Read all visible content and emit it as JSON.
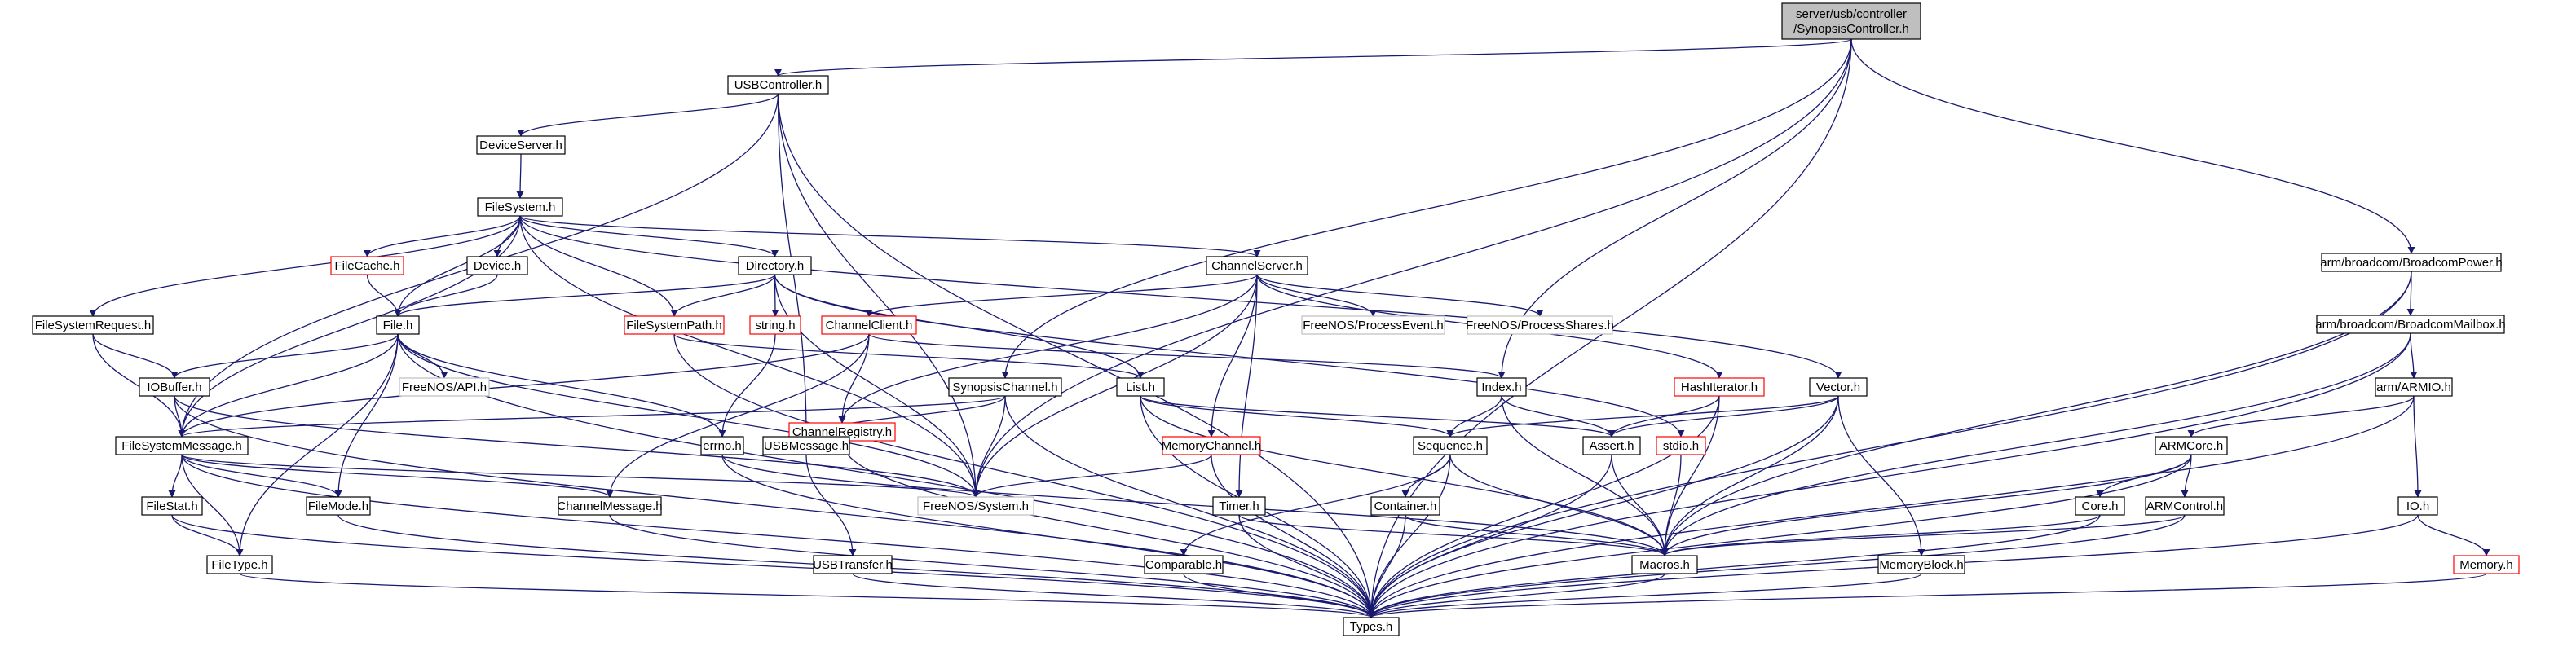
{
  "colors": {
    "edge": "#191970",
    "border_normal": "#000000",
    "border_truncated": "#ff0000",
    "border_external": "#bfbfbf",
    "root_fill": "#bfbfbf",
    "node_fill": "#ffffff"
  },
  "nodes": [
    {
      "id": "root",
      "label": "server/usb/controller\n/SynopsisController.h",
      "kind": "root"
    },
    {
      "id": "usbcontroller",
      "label": "USBController.h",
      "kind": "normal"
    },
    {
      "id": "deviceserver",
      "label": "DeviceServer.h",
      "kind": "normal"
    },
    {
      "id": "filesystem",
      "label": "FileSystem.h",
      "kind": "normal"
    },
    {
      "id": "filecache",
      "label": "FileCache.h",
      "kind": "truncated"
    },
    {
      "id": "device",
      "label": "Device.h",
      "kind": "normal"
    },
    {
      "id": "directory",
      "label": "Directory.h",
      "kind": "normal"
    },
    {
      "id": "channelserver",
      "label": "ChannelServer.h",
      "kind": "normal"
    },
    {
      "id": "fsrequest",
      "label": "FileSystemRequest.h",
      "kind": "normal"
    },
    {
      "id": "file",
      "label": "File.h",
      "kind": "normal"
    },
    {
      "id": "fspath",
      "label": "FileSystemPath.h",
      "kind": "truncated"
    },
    {
      "id": "string",
      "label": "string.h",
      "kind": "truncated"
    },
    {
      "id": "channelclient",
      "label": "ChannelClient.h",
      "kind": "truncated"
    },
    {
      "id": "processevent",
      "label": "FreeNOS/ProcessEvent.h",
      "kind": "external"
    },
    {
      "id": "processshares",
      "label": "FreeNOS/ProcessShares.h",
      "kind": "external"
    },
    {
      "id": "hashiterator",
      "label": "HashIterator.h",
      "kind": "truncated"
    },
    {
      "id": "vector",
      "label": "Vector.h",
      "kind": "normal"
    },
    {
      "id": "iobuffer",
      "label": "IOBuffer.h",
      "kind": "normal"
    },
    {
      "id": "api",
      "label": "FreeNOS/API.h",
      "kind": "external"
    },
    {
      "id": "channelregistry",
      "label": "ChannelRegistry.h",
      "kind": "truncated"
    },
    {
      "id": "synopsischannel",
      "label": "SynopsisChannel.h",
      "kind": "normal"
    },
    {
      "id": "list",
      "label": "List.h",
      "kind": "normal"
    },
    {
      "id": "index",
      "label": "Index.h",
      "kind": "normal"
    },
    {
      "id": "fsmessage",
      "label": "FileSystemMessage.h",
      "kind": "normal"
    },
    {
      "id": "errno",
      "label": "errno.h",
      "kind": "normal"
    },
    {
      "id": "usbmessage",
      "label": "USBMessage.h",
      "kind": "normal"
    },
    {
      "id": "memorychannel",
      "label": "MemoryChannel.h",
      "kind": "truncated"
    },
    {
      "id": "sequence",
      "label": "Sequence.h",
      "kind": "normal"
    },
    {
      "id": "assert",
      "label": "Assert.h",
      "kind": "normal"
    },
    {
      "id": "stdio",
      "label": "stdio.h",
      "kind": "truncated"
    },
    {
      "id": "filestat",
      "label": "FileStat.h",
      "kind": "normal"
    },
    {
      "id": "filemode",
      "label": "FileMode.h",
      "kind": "normal"
    },
    {
      "id": "channelmessage",
      "label": "ChannelMessage.h",
      "kind": "normal"
    },
    {
      "id": "system",
      "label": "FreeNOS/System.h",
      "kind": "external"
    },
    {
      "id": "container",
      "label": "Container.h",
      "kind": "normal"
    },
    {
      "id": "timer",
      "label": "Timer.h",
      "kind": "normal"
    },
    {
      "id": "filetype",
      "label": "FileType.h",
      "kind": "normal"
    },
    {
      "id": "usbtransfer",
      "label": "USBTransfer.h",
      "kind": "normal"
    },
    {
      "id": "comparable",
      "label": "Comparable.h",
      "kind": "normal"
    },
    {
      "id": "macros",
      "label": "Macros.h",
      "kind": "normal"
    },
    {
      "id": "memoryblock",
      "label": "MemoryBlock.h",
      "kind": "normal"
    },
    {
      "id": "types",
      "label": "Types.h",
      "kind": "normal"
    },
    {
      "id": "bcmpower",
      "label": "arm/broadcom/BroadcomPower.h",
      "kind": "normal"
    },
    {
      "id": "bcmmailbox",
      "label": "arm/broadcom/BroadcomMailbox.h",
      "kind": "normal"
    },
    {
      "id": "armio",
      "label": "arm/ARMIO.h",
      "kind": "normal"
    },
    {
      "id": "armcore",
      "label": "ARMCore.h",
      "kind": "normal"
    },
    {
      "id": "core",
      "label": "Core.h",
      "kind": "normal"
    },
    {
      "id": "armcontrol",
      "label": "ARMControl.h",
      "kind": "normal"
    },
    {
      "id": "io",
      "label": "IO.h",
      "kind": "normal"
    },
    {
      "id": "memory",
      "label": "Memory.h",
      "kind": "truncated"
    }
  ],
  "edges": [
    [
      "root",
      "usbcontroller"
    ],
    [
      "root",
      "synopsischannel"
    ],
    [
      "root",
      "index"
    ],
    [
      "root",
      "system"
    ],
    [
      "root",
      "types"
    ],
    [
      "root",
      "bcmpower"
    ],
    [
      "usbcontroller",
      "deviceserver"
    ],
    [
      "usbcontroller",
      "fsmessage"
    ],
    [
      "usbcontroller",
      "usbmessage"
    ],
    [
      "usbcontroller",
      "system"
    ],
    [
      "usbcontroller",
      "types"
    ],
    [
      "deviceserver",
      "filesystem"
    ],
    [
      "filesystem",
      "filecache"
    ],
    [
      "filesystem",
      "device"
    ],
    [
      "filesystem",
      "directory"
    ],
    [
      "filesystem",
      "channelserver"
    ],
    [
      "filesystem",
      "fsrequest"
    ],
    [
      "filesystem",
      "file"
    ],
    [
      "filesystem",
      "fspath"
    ],
    [
      "filesystem",
      "fsmessage"
    ],
    [
      "filesystem",
      "system"
    ],
    [
      "filesystem",
      "vector"
    ],
    [
      "filecache",
      "file"
    ],
    [
      "device",
      "file"
    ],
    [
      "directory",
      "file"
    ],
    [
      "directory",
      "fspath"
    ],
    [
      "directory",
      "string"
    ],
    [
      "directory",
      "system"
    ],
    [
      "directory",
      "list"
    ],
    [
      "directory",
      "stdio"
    ],
    [
      "channelserver",
      "channelclient"
    ],
    [
      "channelserver",
      "channelregistry"
    ],
    [
      "channelserver",
      "memorychannel"
    ],
    [
      "channelserver",
      "processevent"
    ],
    [
      "channelserver",
      "processshares"
    ],
    [
      "channelserver",
      "hashiterator"
    ],
    [
      "channelserver",
      "system"
    ],
    [
      "channelserver",
      "timer"
    ],
    [
      "fsrequest",
      "iobuffer"
    ],
    [
      "fsrequest",
      "fsmessage"
    ],
    [
      "file",
      "iobuffer"
    ],
    [
      "file",
      "fsmessage"
    ],
    [
      "file",
      "api"
    ],
    [
      "file",
      "errno"
    ],
    [
      "file",
      "system"
    ],
    [
      "file",
      "filemode"
    ],
    [
      "file",
      "filetype"
    ],
    [
      "file",
      "types"
    ],
    [
      "fspath",
      "list"
    ],
    [
      "fspath",
      "types"
    ],
    [
      "string",
      "errno"
    ],
    [
      "channelclient",
      "channelregistry"
    ],
    [
      "channelclient",
      "channelmessage"
    ],
    [
      "channelclient",
      "index"
    ],
    [
      "channelclient",
      "fsmessage"
    ],
    [
      "hashiterator",
      "assert"
    ],
    [
      "hashiterator",
      "macros"
    ],
    [
      "hashiterator",
      "types"
    ],
    [
      "vector",
      "sequence"
    ],
    [
      "vector",
      "assert"
    ],
    [
      "vector",
      "macros"
    ],
    [
      "vector",
      "memoryblock"
    ],
    [
      "vector",
      "types"
    ],
    [
      "iobuffer",
      "fsmessage"
    ],
    [
      "iobuffer",
      "system"
    ],
    [
      "iobuffer",
      "types"
    ],
    [
      "channelregistry",
      "types"
    ],
    [
      "synopsischannel",
      "fsmessage"
    ],
    [
      "synopsischannel",
      "usbmessage"
    ],
    [
      "synopsischannel",
      "system"
    ],
    [
      "synopsischannel",
      "types"
    ],
    [
      "list",
      "sequence"
    ],
    [
      "list",
      "assert"
    ],
    [
      "list",
      "macros"
    ],
    [
      "list",
      "types"
    ],
    [
      "index",
      "sequence"
    ],
    [
      "index",
      "assert"
    ],
    [
      "index",
      "macros"
    ],
    [
      "fsmessage",
      "filestat"
    ],
    [
      "fsmessage",
      "filemode"
    ],
    [
      "fsmessage",
      "channelmessage"
    ],
    [
      "fsmessage",
      "system"
    ],
    [
      "fsmessage",
      "filetype"
    ],
    [
      "fsmessage",
      "types"
    ],
    [
      "errno",
      "macros"
    ],
    [
      "errno",
      "types"
    ],
    [
      "usbmessage",
      "usbtransfer"
    ],
    [
      "memorychannel",
      "system"
    ],
    [
      "memorychannel",
      "types"
    ],
    [
      "sequence",
      "container"
    ],
    [
      "sequence",
      "comparable"
    ],
    [
      "sequence",
      "macros"
    ],
    [
      "sequence",
      "types"
    ],
    [
      "assert",
      "macros"
    ],
    [
      "assert",
      "types"
    ],
    [
      "stdio",
      "macros"
    ],
    [
      "filestat",
      "filetype"
    ],
    [
      "filestat",
      "types"
    ],
    [
      "filemode",
      "types"
    ],
    [
      "channelmessage",
      "types"
    ],
    [
      "container",
      "macros"
    ],
    [
      "container",
      "types"
    ],
    [
      "timer",
      "macros"
    ],
    [
      "timer",
      "types"
    ],
    [
      "filetype",
      "types"
    ],
    [
      "usbtransfer",
      "types"
    ],
    [
      "comparable",
      "types"
    ],
    [
      "macros",
      "types"
    ],
    [
      "memoryblock",
      "types"
    ],
    [
      "bcmpower",
      "bcmmailbox"
    ],
    [
      "bcmpower",
      "macros"
    ],
    [
      "bcmpower",
      "types"
    ],
    [
      "bcmmailbox",
      "armio"
    ],
    [
      "bcmmailbox",
      "macros"
    ],
    [
      "bcmmailbox",
      "types"
    ],
    [
      "armio",
      "armcore"
    ],
    [
      "armio",
      "io"
    ],
    [
      "armio",
      "types"
    ],
    [
      "armcore",
      "core"
    ],
    [
      "armcore",
      "armcontrol"
    ],
    [
      "armcore",
      "macros"
    ],
    [
      "armcore",
      "types"
    ],
    [
      "core",
      "macros"
    ],
    [
      "core",
      "types"
    ],
    [
      "armcontrol",
      "macros"
    ],
    [
      "armcontrol",
      "types"
    ],
    [
      "io",
      "memory"
    ],
    [
      "io",
      "types"
    ],
    [
      "memory",
      "types"
    ]
  ]
}
